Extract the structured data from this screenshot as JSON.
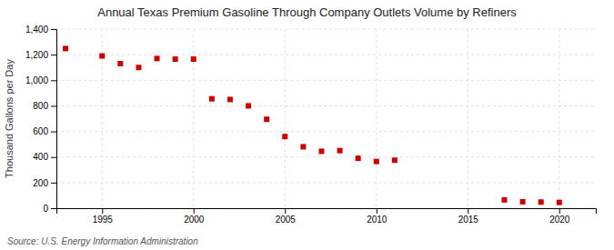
{
  "chart_data": {
    "type": "scatter",
    "title": "Annual Texas Premium Gasoline Through Company Outlets Volume by Refiners",
    "ylabel": "Thousand Gallons per Day",
    "source": "Source: U.S. Energy Information Administration",
    "x": [
      1993,
      1995,
      1996,
      1997,
      1998,
      1999,
      2000,
      2001,
      2002,
      2003,
      2004,
      2005,
      2006,
      2007,
      2008,
      2009,
      2010,
      2011,
      2017,
      2018,
      2019,
      2020
    ],
    "values": [
      1248,
      1190,
      1130,
      1100,
      1170,
      1165,
      1165,
      855,
      850,
      800,
      695,
      560,
      480,
      445,
      450,
      390,
      365,
      375,
      65,
      50,
      48,
      45
    ],
    "color": "#cc0000",
    "marker": "square",
    "grid": true,
    "xlim": [
      1992.5,
      2022
    ],
    "xticks": [
      1995,
      2000,
      2005,
      2010,
      2015,
      2020
    ],
    "ylim": [
      0,
      1400
    ],
    "yticks": [
      0,
      200,
      400,
      600,
      {
        "value": 800,
        "label": "800"
      },
      {
        "value": 1000,
        "label": "1,000"
      },
      {
        "value": 1200,
        "label": "1,200"
      },
      {
        "value": 1400,
        "label": "1,400"
      }
    ]
  }
}
